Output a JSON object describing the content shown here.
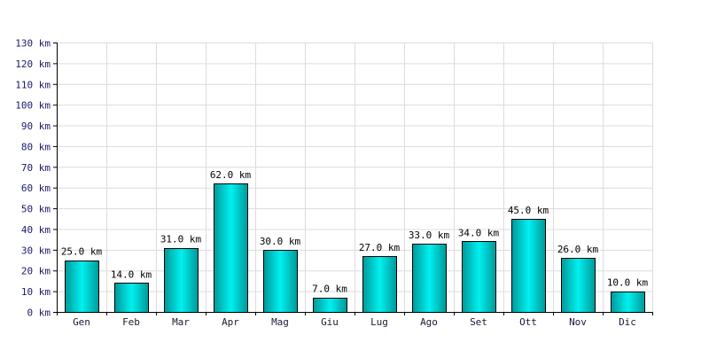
{
  "chart_data": {
    "type": "bar",
    "title": "",
    "xlabel": "",
    "ylabel": "",
    "categories": [
      "Gen",
      "Feb",
      "Mar",
      "Apr",
      "Mag",
      "Giu",
      "Lug",
      "Ago",
      "Set",
      "Ott",
      "Nov",
      "Dic"
    ],
    "values": [
      25.0,
      14.0,
      31.0,
      62.0,
      30.0,
      7.0,
      27.0,
      33.0,
      34.0,
      45.0,
      26.0,
      10.0
    ],
    "value_labels": [
      "25.0 km",
      "14.0 km",
      "31.0 km",
      "62.0 km",
      "30.0 km",
      "7.0 km",
      "27.0 km",
      "33.0 km",
      "34.0 km",
      "45.0 km",
      "26.0 km",
      "10.0 km"
    ],
    "ylim": [
      0,
      130
    ],
    "y_ticks": [
      0,
      10,
      20,
      30,
      40,
      50,
      60,
      70,
      80,
      90,
      100,
      110,
      120,
      130
    ],
    "y_tick_labels": [
      "0 km",
      "10 km",
      "20 km",
      "30 km",
      "40 km",
      "50 km",
      "60 km",
      "70 km",
      "80 km",
      "90 km",
      "100 km",
      "110 km",
      "120 km",
      "130 km"
    ],
    "grid": true,
    "colors": {
      "bar_top": "#00f0f0",
      "bar_bottom": "#009999",
      "bar_stroke": "#000000",
      "grid": "#dcdcdc",
      "axis": "#000000"
    }
  }
}
